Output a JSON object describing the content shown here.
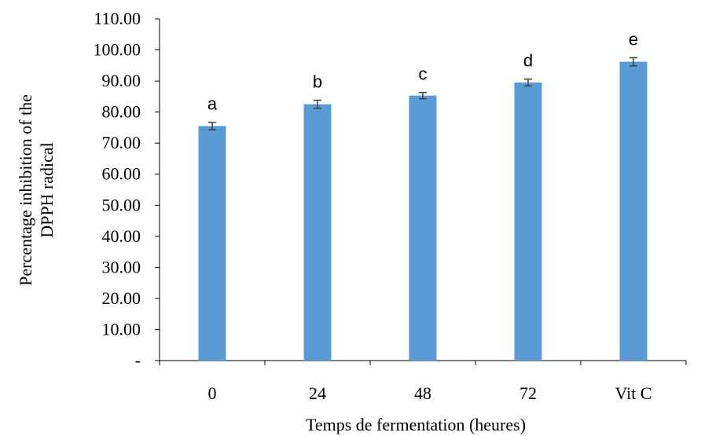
{
  "chart_data": {
    "type": "bar",
    "title": "",
    "xlabel": "Temps de fermentation (heures)",
    "ylabel_lines": [
      "Percentage inhibition of the",
      "DPPH radical"
    ],
    "categories": [
      "0",
      "24",
      "48",
      "72",
      "Vit C"
    ],
    "values": [
      75.5,
      82.5,
      85.3,
      89.5,
      96.2
    ],
    "error": [
      1.2,
      1.3,
      1.0,
      1.1,
      1.3
    ],
    "significance_letters": [
      "a",
      "b",
      "c",
      "d",
      "e"
    ],
    "ylim": [
      0,
      110
    ],
    "yticks": [
      0,
      10,
      20,
      30,
      40,
      50,
      60,
      70,
      80,
      90,
      100,
      110
    ],
    "ytick_labels": [
      "-",
      "10.00",
      "20.00",
      "30.00",
      "40.00",
      "50.00",
      "60.00",
      "70.00",
      "80.00",
      "90.00",
      "100.00",
      "110.00"
    ],
    "grid": false,
    "bar_color": "#5B9BD5",
    "error_bar_color": "#404040"
  }
}
